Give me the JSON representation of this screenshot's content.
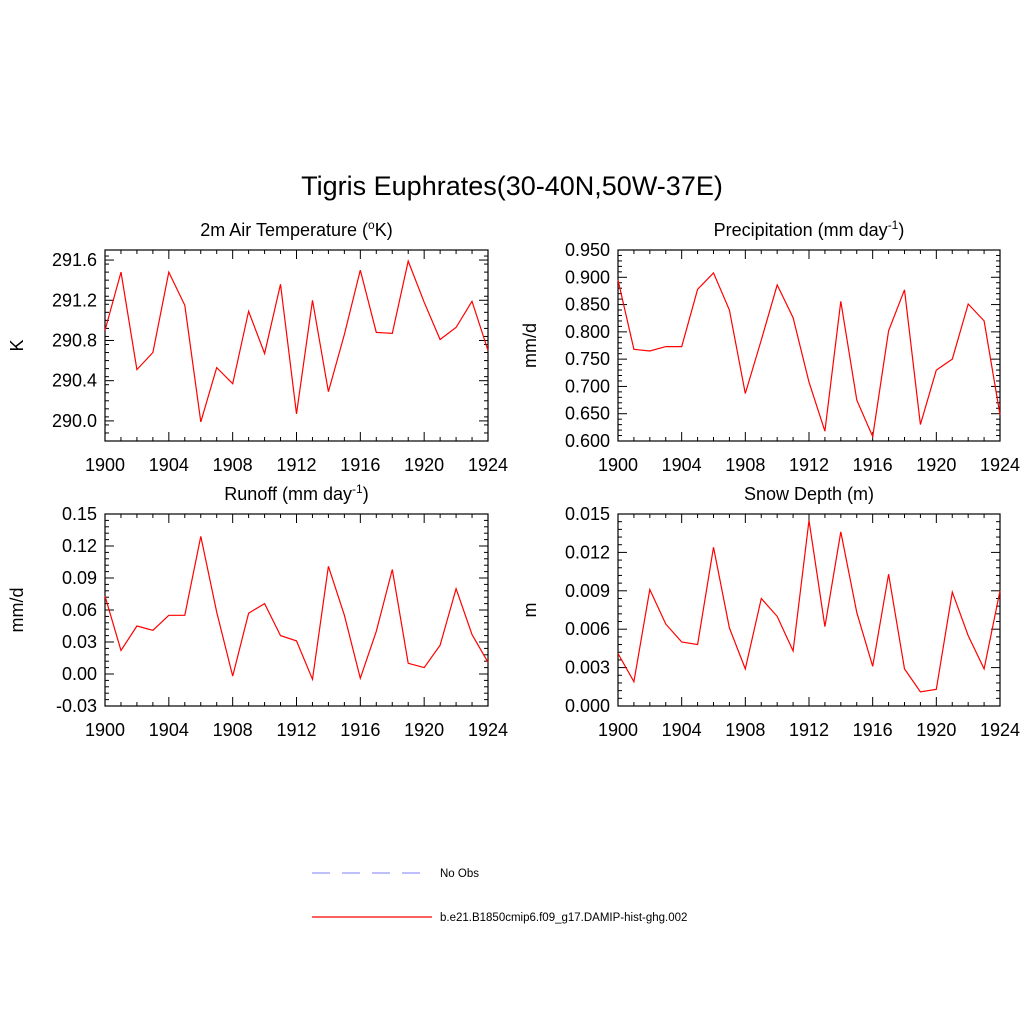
{
  "page": {
    "title": "Tigris Euphrates(30-40N,50W-37E)"
  },
  "legend": {
    "entries": [
      {
        "label": "No Obs",
        "color": "#9999ff",
        "dashed": true
      },
      {
        "label": "b.e21.B1850cmip6.f09_g17.DAMIP-hist-ghg.002",
        "color": "#ff0000",
        "dashed": false
      }
    ]
  },
  "colors": {
    "series": "#ff0000",
    "axis": "#000000"
  },
  "chart_data": [
    {
      "type": "line",
      "title": "2m Air Temperature (",
      "title_sup": "o",
      "title_after": "K)",
      "ylabel": "K",
      "xlim": [
        1900,
        1924
      ],
      "ylim": [
        289.8,
        291.7
      ],
      "xticks": [
        1900,
        1904,
        1908,
        1912,
        1916,
        1920,
        1924
      ],
      "xtick_labels": [
        "1900",
        "1904",
        "1908",
        "1912",
        "1916",
        "1920",
        "1924"
      ],
      "yticks": [
        290.0,
        290.4,
        290.8,
        291.2,
        291.6
      ],
      "ytick_labels": [
        "290.0",
        "290.4",
        "290.8",
        "291.2",
        "291.6"
      ],
      "x": [
        1900,
        1901,
        1902,
        1903,
        1904,
        1905,
        1906,
        1907,
        1908,
        1909,
        1910,
        1911,
        1912,
        1913,
        1914,
        1915,
        1916,
        1917,
        1918,
        1919,
        1920,
        1921,
        1922,
        1923,
        1924
      ],
      "series": [
        {
          "values": [
            290.9,
            291.48,
            290.51,
            290.68,
            291.48,
            291.15,
            289.99,
            290.53,
            290.37,
            291.09,
            290.67,
            291.36,
            290.07,
            291.2,
            290.29,
            290.86,
            291.5,
            290.88,
            290.87,
            291.59,
            291.18,
            290.81,
            290.93,
            291.19,
            290.7
          ]
        }
      ]
    },
    {
      "type": "line",
      "title": "Precipitation (mm day",
      "title_sup": "-1",
      "title_after": ")",
      "ylabel": "mm/d",
      "xlim": [
        1900,
        1924
      ],
      "ylim": [
        0.6,
        0.95
      ],
      "xticks": [
        1900,
        1904,
        1908,
        1912,
        1916,
        1920,
        1924
      ],
      "xtick_labels": [
        "1900",
        "1904",
        "1908",
        "1912",
        "1916",
        "1920",
        "1924"
      ],
      "yticks": [
        0.6,
        0.65,
        0.7,
        0.75,
        0.8,
        0.85,
        0.9,
        0.95
      ],
      "ytick_labels": [
        "0.600",
        "0.650",
        "0.700",
        "0.750",
        "0.800",
        "0.850",
        "0.900",
        "0.950"
      ],
      "x": [
        1900,
        1901,
        1902,
        1903,
        1904,
        1905,
        1906,
        1907,
        1908,
        1909,
        1910,
        1911,
        1912,
        1913,
        1914,
        1915,
        1916,
        1917,
        1918,
        1919,
        1920,
        1921,
        1922,
        1923,
        1924
      ],
      "series": [
        {
          "values": [
            0.895,
            0.768,
            0.765,
            0.773,
            0.773,
            0.878,
            0.908,
            0.84,
            0.687,
            0.785,
            0.886,
            0.826,
            0.708,
            0.618,
            0.856,
            0.675,
            0.608,
            0.802,
            0.877,
            0.63,
            0.73,
            0.75,
            0.851,
            0.82,
            0.648
          ]
        }
      ]
    },
    {
      "type": "line",
      "title": "Runoff (mm day",
      "title_sup": "-1",
      "title_after": ")",
      "ylabel": "mm/d",
      "xlim": [
        1900,
        1924
      ],
      "ylim": [
        -0.03,
        0.15
      ],
      "xticks": [
        1900,
        1904,
        1908,
        1912,
        1916,
        1920,
        1924
      ],
      "xtick_labels": [
        "1900",
        "1904",
        "1908",
        "1912",
        "1916",
        "1920",
        "1924"
      ],
      "yticks": [
        -0.03,
        0.0,
        0.03,
        0.06,
        0.09,
        0.12,
        0.15
      ],
      "ytick_labels": [
        "-0.03",
        "0.00",
        "0.03",
        "0.06",
        "0.09",
        "0.12",
        "0.15"
      ],
      "x": [
        1900,
        1901,
        1902,
        1903,
        1904,
        1905,
        1906,
        1907,
        1908,
        1909,
        1910,
        1911,
        1912,
        1913,
        1914,
        1915,
        1916,
        1917,
        1918,
        1919,
        1920,
        1921,
        1922,
        1923,
        1924
      ],
      "series": [
        {
          "values": [
            0.073,
            0.022,
            0.045,
            0.041,
            0.055,
            0.055,
            0.129,
            0.058,
            -0.002,
            0.057,
            0.066,
            0.036,
            0.031,
            -0.005,
            0.101,
            0.055,
            -0.004,
            0.04,
            0.098,
            0.01,
            0.006,
            0.027,
            0.08,
            0.037,
            0.011
          ]
        }
      ]
    },
    {
      "type": "line",
      "title": "Snow Depth (m)",
      "title_sup": "",
      "title_after": "",
      "ylabel": "m",
      "xlim": [
        1900,
        1924
      ],
      "ylim": [
        0.0,
        0.015
      ],
      "xticks": [
        1900,
        1904,
        1908,
        1912,
        1916,
        1920,
        1924
      ],
      "xtick_labels": [
        "1900",
        "1904",
        "1908",
        "1912",
        "1916",
        "1920",
        "1924"
      ],
      "yticks": [
        0.0,
        0.003,
        0.006,
        0.009,
        0.012,
        0.015
      ],
      "ytick_labels": [
        "0.000",
        "0.003",
        "0.006",
        "0.009",
        "0.012",
        "0.015"
      ],
      "x": [
        1900,
        1901,
        1902,
        1903,
        1904,
        1905,
        1906,
        1907,
        1908,
        1909,
        1910,
        1911,
        1912,
        1913,
        1914,
        1915,
        1916,
        1917,
        1918,
        1919,
        1920,
        1921,
        1922,
        1923,
        1924
      ],
      "series": [
        {
          "values": [
            0.0041,
            0.0019,
            0.0091,
            0.0064,
            0.005,
            0.0048,
            0.0124,
            0.0061,
            0.0029,
            0.0084,
            0.007,
            0.0043,
            0.0145,
            0.0062,
            0.0136,
            0.0073,
            0.0031,
            0.0103,
            0.0029,
            0.0011,
            0.0013,
            0.0089,
            0.0055,
            0.0029,
            0.009
          ]
        }
      ]
    }
  ]
}
